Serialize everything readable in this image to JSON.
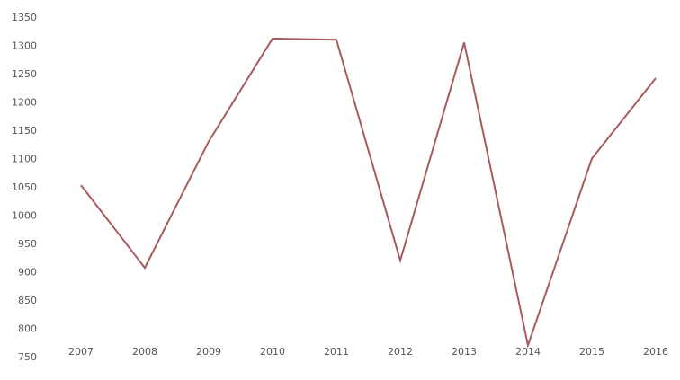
{
  "chart_data": {
    "type": "line",
    "title": "",
    "xlabel": "",
    "ylabel": "",
    "categories": [
      "2007",
      "2008",
      "2009",
      "2010",
      "2011",
      "2012",
      "2013",
      "2014",
      "2015",
      "2016"
    ],
    "series": [
      {
        "values": [
          1053,
          907,
          1130,
          1312,
          1310,
          920,
          1305,
          770,
          1100,
          1242
        ]
      }
    ],
    "ylim": [
      750,
      1350
    ],
    "yticks": [
      750,
      800,
      850,
      900,
      950,
      1000,
      1050,
      1100,
      1150,
      1200,
      1250,
      1300,
      1350
    ],
    "grid": false,
    "legend": "none",
    "line_color": "#a85a5e"
  }
}
